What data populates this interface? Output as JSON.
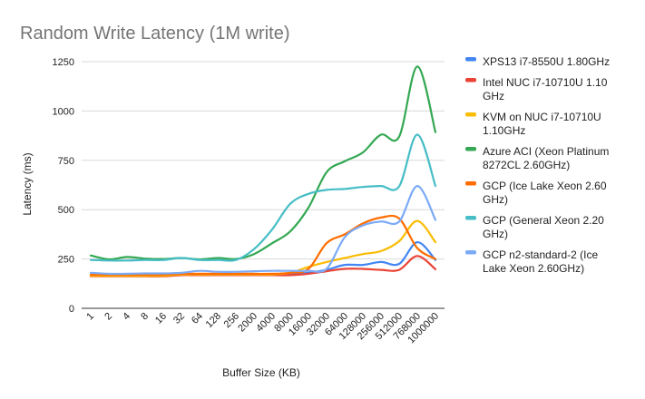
{
  "chart_data": {
    "type": "line",
    "title": "Random Write Latency (1M write)",
    "xlabel": "Buffer Size (KB)",
    "ylabel": "Latency (ms)",
    "ylim": [
      0,
      1250
    ],
    "yticks": [
      0,
      250,
      500,
      750,
      1000,
      1250
    ],
    "grid": true,
    "legend_position": "right",
    "categories": [
      "1",
      "2",
      "4",
      "8",
      "16",
      "32",
      "64",
      "128",
      "256",
      "2000",
      "4000",
      "8000",
      "16000",
      "32000",
      "64000",
      "128000",
      "256000",
      "512000",
      "768000",
      "1000000"
    ],
    "series": [
      {
        "name": "XPS13 i7-8550U 1.80GHz",
        "color": "#4285f4",
        "values": [
          165,
          165,
          165,
          165,
          165,
          172,
          172,
          172,
          172,
          172,
          172,
          172,
          180,
          195,
          220,
          220,
          235,
          225,
          335,
          245
        ]
      },
      {
        "name": "Intel NUC i7-10710U 1.10 GHz",
        "color": "#ea4335",
        "values": [
          162,
          162,
          162,
          162,
          162,
          168,
          168,
          168,
          168,
          168,
          168,
          168,
          175,
          188,
          200,
          200,
          195,
          195,
          265,
          198
        ]
      },
      {
        "name": "KVM on NUC i7-10710U 1.10GHz",
        "color": "#fbbc04",
        "values": [
          165,
          165,
          165,
          165,
          165,
          172,
          172,
          172,
          172,
          172,
          172,
          180,
          210,
          235,
          255,
          275,
          290,
          340,
          443,
          335
        ]
      },
      {
        "name": "Azure ACI (Xeon Platinum 8272CL 2.60GHz)",
        "color": "#34a853",
        "values": [
          268,
          248,
          260,
          252,
          250,
          255,
          248,
          255,
          250,
          275,
          330,
          390,
          510,
          690,
          745,
          790,
          880,
          870,
          1225,
          893
        ]
      },
      {
        "name": "GCP (Ice Lake Xeon 2.60 GHz)",
        "color": "#ff6d01",
        "values": [
          170,
          170,
          170,
          170,
          170,
          175,
          175,
          175,
          175,
          175,
          175,
          180,
          200,
          330,
          375,
          430,
          460,
          455,
          305,
          250
        ]
      },
      {
        "name": "GCP (General Xeon 2.20 GHz)",
        "color": "#46bdc6",
        "values": [
          245,
          242,
          242,
          245,
          245,
          255,
          245,
          245,
          245,
          300,
          400,
          530,
          580,
          600,
          605,
          615,
          620,
          618,
          880,
          620
        ]
      },
      {
        "name": "GCP n2-standard-2 (Ice Lake Xeon 2.60GHz)",
        "color": "#7baaf7",
        "values": [
          180,
          175,
          175,
          177,
          177,
          180,
          190,
          185,
          185,
          188,
          190,
          190,
          190,
          200,
          360,
          420,
          440,
          440,
          620,
          448
        ]
      }
    ],
    "legend_lines": [
      [
        "XPS13 i7-8550U 1.80GHz"
      ],
      [
        "Intel NUC i7-10710U 1.10",
        "GHz"
      ],
      [
        "KVM on NUC i7-10710U",
        "1.10GHz"
      ],
      [
        "Azure ACI (Xeon Platinum",
        "8272CL 2.60GHz)"
      ],
      [
        "GCP (Ice Lake Xeon 2.60",
        "GHz)"
      ],
      [
        "GCP (General Xeon 2.20",
        "GHz)"
      ],
      [
        "GCP n2-standard-2 (Ice",
        "Lake Xeon 2.60GHz)"
      ]
    ]
  }
}
